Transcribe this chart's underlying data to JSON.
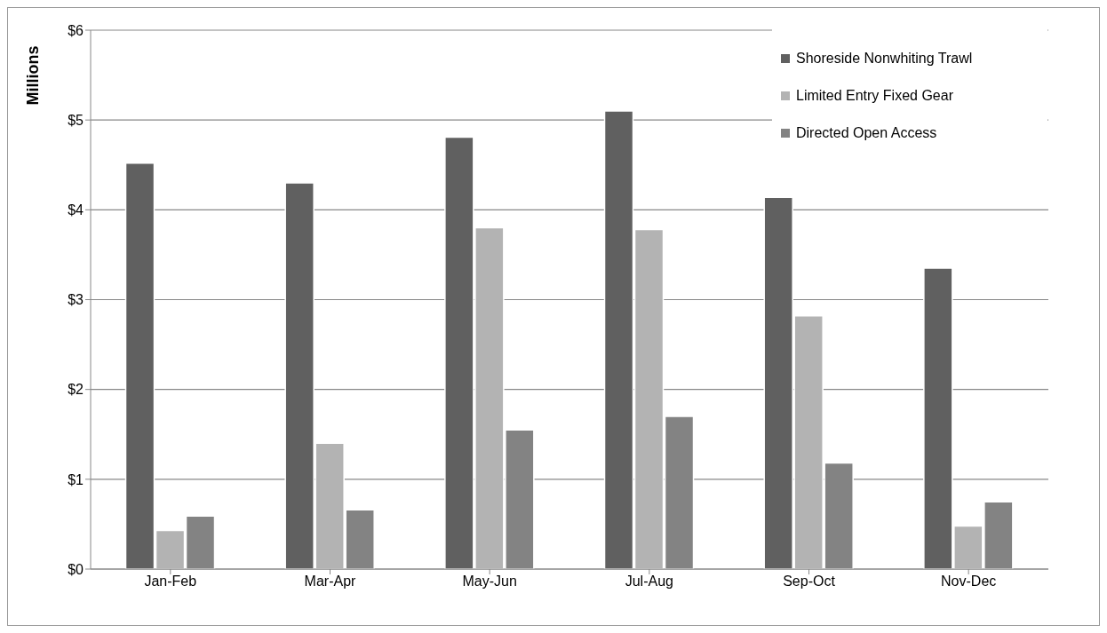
{
  "chart_data": {
    "type": "bar",
    "ylabel": "Millions",
    "categories": [
      "Jan-Feb",
      "Mar-Apr",
      "May-Jun",
      "Jul-Aug",
      "Sep-Oct",
      "Nov-Dec"
    ],
    "series": [
      {
        "name": "Shoreside Nonwhiting Trawl",
        "color": "#606060",
        "values": [
          4.52,
          4.3,
          4.81,
          5.1,
          4.14,
          3.35
        ]
      },
      {
        "name": "Limited Entry Fixed Gear",
        "color": "#b3b3b3",
        "values": [
          0.43,
          1.4,
          3.8,
          3.78,
          2.82,
          0.48
        ]
      },
      {
        "name": "Directed Open Access",
        "color": "#838383",
        "values": [
          0.59,
          0.66,
          1.55,
          1.7,
          1.18,
          0.75
        ]
      }
    ],
    "ylim": [
      0,
      6
    ],
    "yticks": [
      {
        "value": 0,
        "label": "$0"
      },
      {
        "value": 1,
        "label": "$1"
      },
      {
        "value": 2,
        "label": "$2"
      },
      {
        "value": 3,
        "label": "$3"
      },
      {
        "value": 4,
        "label": "$4"
      },
      {
        "value": 5,
        "label": "$5"
      },
      {
        "value": 6,
        "label": "$6"
      }
    ],
    "grid": "y",
    "legend": "top right"
  }
}
